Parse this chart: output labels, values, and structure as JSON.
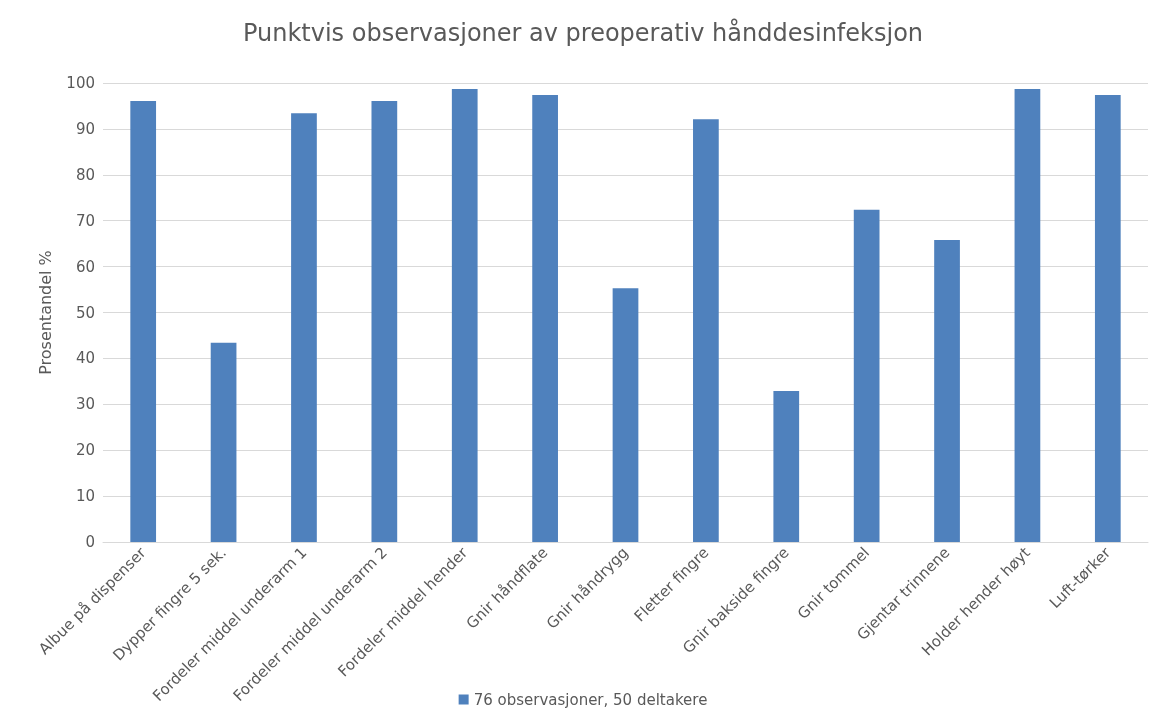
{
  "chart_data": {
    "type": "bar",
    "title": "Punktvis observasjoner av preoperativ hånddesinfeksjon",
    "ylabel": "Prosentandel %",
    "categories": [
      "Albue på dispenser",
      "Dypper fingre 5 sek.",
      "Fordeler middel underarm 1",
      "Fordeler middel underarm 2",
      "Fordeler middel hender",
      "Gnir håndflate",
      "Gnir håndrygg",
      "Fletter fingre",
      "Gnir bakside fingre",
      "Gnir tommel",
      "Gjentar trinnene",
      "Holder hender høyt",
      "Luft-tørker"
    ],
    "series": [
      {
        "name": "76 observasjoner, 50 deltakere",
        "color": "#4f81bd",
        "values": [
          96.1,
          43.4,
          93.4,
          96.1,
          98.7,
          97.4,
          55.3,
          92.1,
          32.9,
          72.4,
          65.8,
          98.7,
          97.4
        ]
      }
    ],
    "ylim": [
      0,
      100
    ],
    "yticks": [
      0,
      10,
      20,
      30,
      40,
      50,
      60,
      70,
      80,
      90,
      100
    ],
    "grid": "y",
    "legend": "bottom"
  }
}
